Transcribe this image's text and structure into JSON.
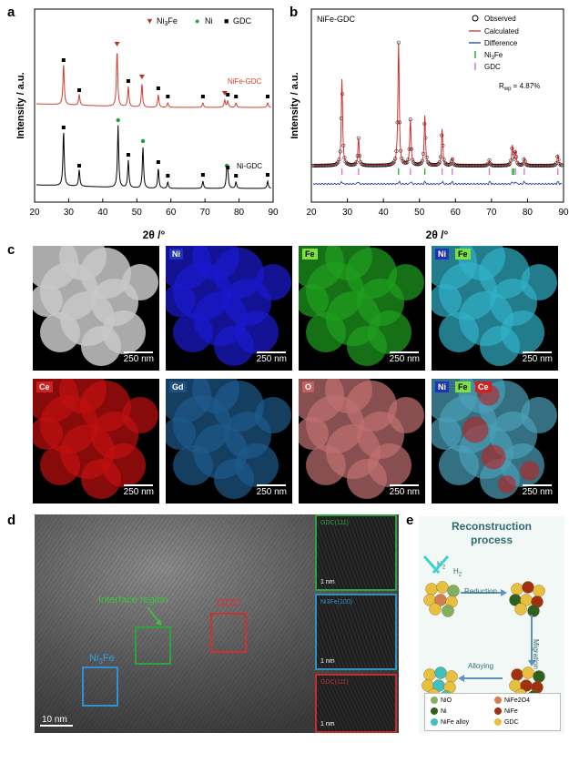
{
  "panel_labels": {
    "a": "a",
    "b": "b",
    "c": "c",
    "d": "d",
    "e": "e"
  },
  "chart_data": [
    {
      "type": "line",
      "panel": "a",
      "xlabel": "2θ /°",
      "ylabel": "Intensity / a.u.",
      "xlim": [
        20,
        90
      ],
      "xticks": [
        20,
        30,
        40,
        50,
        60,
        70,
        80,
        90
      ],
      "legend": [
        "Ni3Fe",
        "Ni",
        "GDC"
      ],
      "legend_placement": "top",
      "series": [
        {
          "name": "NiFe-GDC",
          "color": "#d04030",
          "peaks": [
            [
              28.5,
              45
            ],
            [
              33.1,
              12
            ],
            [
              44.2,
              62
            ],
            [
              47.5,
              22
            ],
            [
              51.5,
              26
            ],
            [
              56.3,
              14
            ],
            [
              59.1,
              5
            ],
            [
              69.4,
              5
            ],
            [
              75.8,
              8
            ],
            [
              76.7,
              7
            ],
            [
              79.1,
              5
            ],
            [
              88.4,
              5
            ]
          ],
          "markers": {
            "Ni3Fe": [
              44.2,
              51.5,
              75.8
            ],
            "GDC": [
              28.5,
              33.1,
              47.5,
              56.3,
              59.1,
              69.4,
              76.7,
              79.1,
              88.4
            ]
          }
        },
        {
          "name": "Ni-GDC",
          "color": "#000000",
          "peaks": [
            [
              28.5,
              60
            ],
            [
              33.1,
              18
            ],
            [
              44.5,
              68
            ],
            [
              47.5,
              30
            ],
            [
              51.8,
              45
            ],
            [
              56.3,
              22
            ],
            [
              59.1,
              7
            ],
            [
              69.4,
              8
            ],
            [
              76.4,
              18
            ],
            [
              76.7,
              16
            ],
            [
              79.1,
              7
            ],
            [
              88.4,
              8
            ]
          ],
          "markers": {
            "Ni": [
              44.5,
              51.8,
              76.4
            ],
            "GDC": [
              28.5,
              33.1,
              47.5,
              56.3,
              59.1,
              69.4,
              76.7,
              79.1,
              88.4
            ]
          }
        }
      ]
    },
    {
      "type": "scatter",
      "panel": "b",
      "title": "NiFe-GDC",
      "xlabel": "2θ /°",
      "ylabel": "Intensity / a.u.",
      "xlim": [
        20,
        90
      ],
      "xticks": [
        20,
        30,
        40,
        50,
        60,
        70,
        80,
        90
      ],
      "legend": [
        "Observed",
        "Calculated",
        "Difference",
        "Ni3Fe",
        "GDC"
      ],
      "legend_placement": "top-right",
      "annotation": "R",
      "annotation_sub": "wp",
      "annotation_value": " = 4.87%",
      "peaks": [
        [
          28.5,
          95
        ],
        [
          33.1,
          30
        ],
        [
          44.2,
          135
        ],
        [
          47.5,
          50
        ],
        [
          51.5,
          55
        ],
        [
          56.3,
          40
        ],
        [
          59.1,
          8
        ],
        [
          69.4,
          6
        ],
        [
          75.8,
          22
        ],
        [
          76.7,
          16
        ],
        [
          79.1,
          8
        ],
        [
          88.4,
          12
        ]
      ],
      "ticks_Ni3Fe": [
        44.2,
        51.5,
        75.8,
        76.2
      ],
      "ticks_GDC": [
        28.5,
        33.1,
        47.5,
        56.3,
        59.1,
        69.4,
        76.7,
        79.1,
        88.4
      ]
    }
  ],
  "panel_c": {
    "tiles": [
      {
        "tags": [],
        "kind": "haadf",
        "scalebar": "250 nm"
      },
      {
        "tags": [
          {
            "text": "Ni",
            "color": "#ffffff",
            "bg": "#2030c0"
          }
        ],
        "kind": "ni",
        "scalebar": "250 nm"
      },
      {
        "tags": [
          {
            "text": "Fe",
            "color": "#000000",
            "bg": "#80e040"
          }
        ],
        "kind": "fe",
        "scalebar": "250 nm"
      },
      {
        "tags": [
          {
            "text": "Ni",
            "color": "#ffffff",
            "bg": "#2030c0"
          },
          {
            "text": "Fe",
            "color": "#000000",
            "bg": "#80e040"
          }
        ],
        "kind": "nife",
        "scalebar": "250 nm"
      },
      {
        "tags": [
          {
            "text": "Ce",
            "color": "#ffffff",
            "bg": "#d02020"
          }
        ],
        "kind": "ce",
        "scalebar": "250 nm"
      },
      {
        "tags": [
          {
            "text": "Gd",
            "color": "#ffffff",
            "bg": "#205080"
          }
        ],
        "kind": "gd",
        "scalebar": "250 nm"
      },
      {
        "tags": [
          {
            "text": "O",
            "color": "#ffffff",
            "bg": "#c06060"
          }
        ],
        "kind": "o",
        "scalebar": "250 nm"
      },
      {
        "tags": [
          {
            "text": "Ni",
            "color": "#ffffff",
            "bg": "#2030c0"
          },
          {
            "text": "Fe",
            "color": "#000000",
            "bg": "#80e040"
          },
          {
            "text": "Ce",
            "color": "#ffffff",
            "bg": "#d02020"
          }
        ],
        "kind": "all",
        "scalebar": "250 nm"
      }
    ],
    "colors": {
      "haadf": "#c8c8c8",
      "ni": "#1a1ad0",
      "fe": "#20a020",
      "nife": "#30b0c8",
      "ce": "#c01010",
      "gd": "#1e5a8a",
      "o": "#c07070",
      "all": "#4aa0b8"
    }
  },
  "panel_d": {
    "labels": {
      "interface": "Interface region",
      "gdc": "GDC",
      "ni3fe": "Ni3Fe"
    },
    "scalebar": "10 nm",
    "insets": [
      {
        "text": "GDC(111)",
        "scalebar": "1 nm",
        "color": "#30a040"
      },
      {
        "text": "Ni3Fe(100)",
        "scalebar": "1 nm",
        "color": "#3090c0"
      },
      {
        "text": "GDC(111)",
        "scalebar": "1 nm",
        "color": "#c03030"
      }
    ]
  },
  "panel_e": {
    "title_line1": "Reconstruction",
    "title_line2": "process",
    "h2": "H",
    "steps": {
      "reduction": "Reduction",
      "migration": "Migration",
      "alloying": "Alloying"
    },
    "legend": [
      {
        "label": "NiO",
        "color": "#80b060"
      },
      {
        "label": "NiFe2O4",
        "color": "#d08050"
      },
      {
        "label": "Ni",
        "color": "#306020"
      },
      {
        "label": "NiFe",
        "color": "#a03010"
      },
      {
        "label": "NiFe alloy",
        "color": "#40c0c0"
      },
      {
        "label": "GDC",
        "color": "#e8c040"
      }
    ]
  }
}
